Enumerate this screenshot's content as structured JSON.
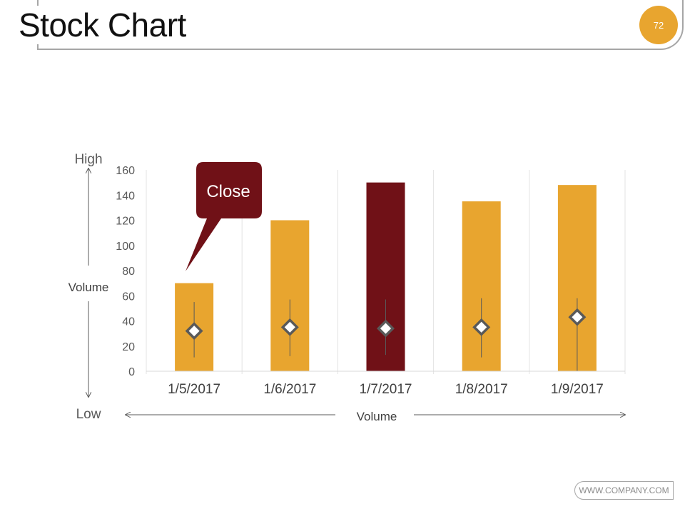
{
  "page": {
    "title": "Stock Chart",
    "page_number": "72",
    "footer": "WWW.COMPANY.COM",
    "accent_color": "#e8a52f"
  },
  "chart_data": {
    "type": "bar",
    "categories": [
      "1/5/2017",
      "1/6/2017",
      "1/7/2017",
      "1/8/2017",
      "1/9/2017"
    ],
    "values": [
      70,
      120,
      150,
      135,
      148
    ],
    "bar_colors": [
      "#e8a52f",
      "#e8a52f",
      "#701117",
      "#e8a52f",
      "#e8a52f"
    ],
    "high": [
      55,
      57,
      57,
      58,
      58
    ],
    "low": [
      11,
      12,
      13,
      11,
      0
    ],
    "close": [
      32,
      35,
      34,
      35,
      43
    ],
    "ylim": [
      0,
      160
    ],
    "yticks": [
      0,
      20,
      40,
      60,
      80,
      100,
      120,
      140,
      160
    ],
    "grid": "vertical",
    "left_axis": {
      "top_label": "High",
      "middle_label": "Volume",
      "bottom_label": "Low"
    },
    "bottom_axis": {
      "label": "Volume"
    },
    "callout": {
      "text": "Close",
      "color": "#701117"
    }
  }
}
